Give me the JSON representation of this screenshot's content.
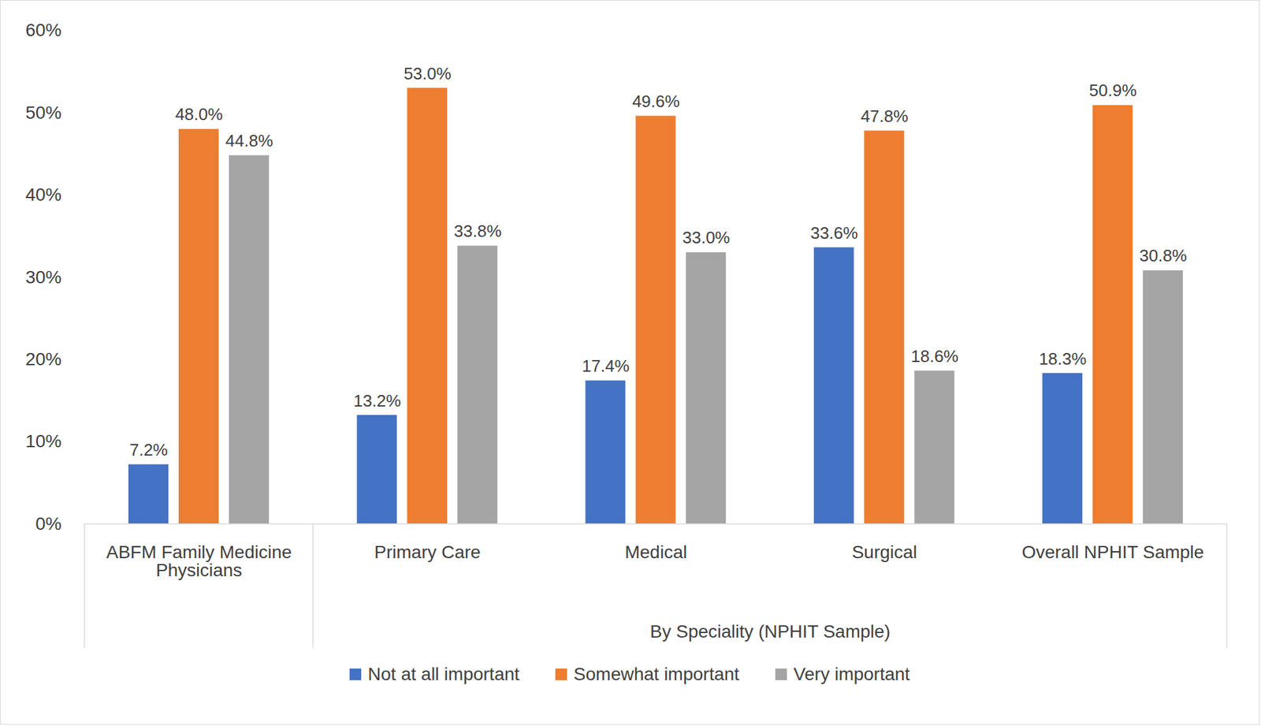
{
  "chart_data": {
    "type": "bar",
    "categories": [
      "ABFM Family Medicine Physicians",
      "Primary Care",
      "Medical",
      "Surgical",
      "Overall NPHIT Sample"
    ],
    "category_groups": [
      {
        "label": "By Speciality (NPHIT Sample)",
        "categories": [
          "Primary Care",
          "Medical",
          "Surgical",
          "Overall NPHIT Sample"
        ]
      }
    ],
    "series": [
      {
        "name": "Not at all important",
        "color": "#4472C4",
        "values": [
          7.2,
          13.2,
          17.4,
          33.6,
          18.3
        ],
        "value_labels": [
          "7.2%",
          "13.2%",
          "17.4%",
          "33.6%",
          "18.3%"
        ]
      },
      {
        "name": "Somewhat important",
        "color": "#ED7D31",
        "values": [
          48.0,
          53.0,
          49.6,
          47.8,
          50.9
        ],
        "value_labels": [
          "48.0%",
          "53.0%",
          "49.6%",
          "47.8%",
          "50.9%"
        ]
      },
      {
        "name": "Very important",
        "color": "#A5A5A5",
        "values": [
          44.8,
          33.8,
          33.0,
          18.6,
          30.8
        ],
        "value_labels": [
          "44.8%",
          "33.8%",
          "33.0%",
          "18.6%",
          "30.8%"
        ]
      }
    ],
    "ylim": [
      0,
      60
    ],
    "yticks": [
      {
        "value": 0,
        "label": "0%"
      },
      {
        "value": 10,
        "label": "10%"
      },
      {
        "value": 20,
        "label": "20%"
      },
      {
        "value": 30,
        "label": "30%"
      },
      {
        "value": 40,
        "label": "40%"
      },
      {
        "value": 50,
        "label": "50%"
      },
      {
        "value": 60,
        "label": "60%"
      }
    ],
    "grid": false,
    "data_labels": true,
    "legend": "bottom"
  }
}
